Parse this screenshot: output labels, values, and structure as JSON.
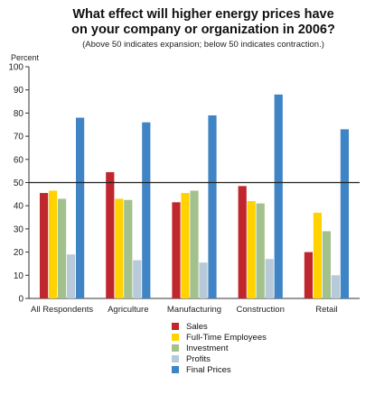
{
  "chart_data": {
    "type": "bar",
    "title_line1": "What effect will higher energy prices have",
    "title_line2": "on your company or organization in 2006?",
    "subtitle": "(Above 50 indicates expansion; below 50 indicates contraction.)",
    "ylabel": "Percent",
    "xlabel": "",
    "ylim": [
      0,
      100
    ],
    "yticks": [
      0,
      10,
      20,
      30,
      40,
      50,
      60,
      70,
      80,
      90,
      100
    ],
    "reference_line": 50,
    "grid": false,
    "legend_position": "bottom-center",
    "categories": [
      "All Respondents",
      "Agriculture",
      "Manufacturing",
      "Construction",
      "Retail"
    ],
    "series": [
      {
        "name": "Sales",
        "color": "#c0272d",
        "values": [
          45.5,
          54.5,
          41.5,
          48.5,
          20
        ]
      },
      {
        "name": "Full-Time Employees",
        "color": "#ffd200",
        "values": [
          46.5,
          43,
          45.5,
          42,
          37
        ]
      },
      {
        "name": "Investment",
        "color": "#a3c18c",
        "values": [
          43,
          42.5,
          46.5,
          41,
          29
        ]
      },
      {
        "name": "Profits",
        "color": "#b8cad9",
        "values": [
          19,
          16.5,
          15.5,
          17,
          10
        ]
      },
      {
        "name": "Final Prices",
        "color": "#3f84c5",
        "values": [
          78,
          76,
          79,
          88,
          73
        ]
      }
    ]
  }
}
